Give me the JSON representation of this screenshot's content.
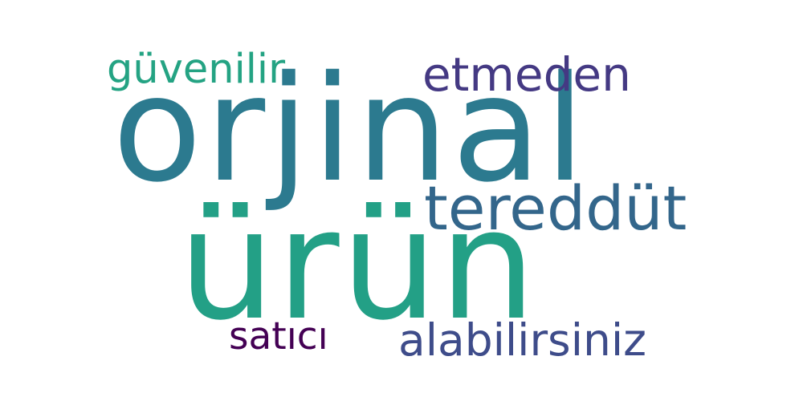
{
  "wordcloud": {
    "words": [
      {
        "text": "orjinal",
        "color": "#2c7a8f"
      },
      {
        "text": "ürün",
        "color": "#23a086"
      },
      {
        "text": "tereddüt",
        "color": "#33668b"
      },
      {
        "text": "etmeden",
        "color": "#443983"
      },
      {
        "text": "güvenilir",
        "color": "#24a383"
      },
      {
        "text": "satıcı",
        "color": "#440154"
      },
      {
        "text": "alabilirsiniz",
        "color": "#3e4c8a"
      }
    ]
  }
}
